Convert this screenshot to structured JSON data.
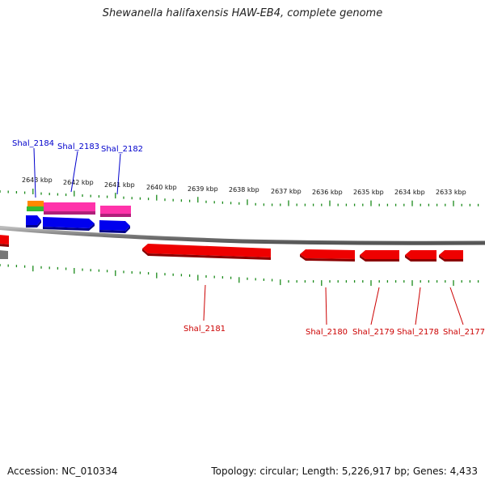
{
  "title": "Shewanella halifaxensis HAW-EB4, complete genome",
  "footer": {
    "accession": "Accession: NC_010334",
    "summary": "Topology: circular; Length: 5,226,917 bp; Genes: 4,433"
  },
  "colors": {
    "backbone": "#8a8a8a",
    "tick": "#1a8a1a",
    "forward_gene": "#0000ee",
    "reverse_gene": "#ee0000",
    "forward_label": "#0000cc",
    "reverse_label": "#cc0000",
    "feature_pink": "#ff33aa",
    "feature_orange": "#ff8800",
    "feature_green": "#33bb33"
  },
  "scale_labels": [
    "2643 kbp",
    "2642 kbp",
    "2641 kbp",
    "2640 kbp",
    "2639 kbp",
    "2638 kbp",
    "2637 kbp",
    "2636 kbp",
    "2635 kbp",
    "2634 kbp",
    "2633 kbp"
  ],
  "genes_forward": [
    {
      "name": "Shal_2184"
    },
    {
      "name": "Shal_2183"
    },
    {
      "name": "Shal_2182"
    }
  ],
  "genes_reverse": [
    {
      "name": "Shal_2181"
    },
    {
      "name": "Shal_2180"
    },
    {
      "name": "Shal_2179"
    },
    {
      "name": "Shal_2178"
    },
    {
      "name": "Shal_2177"
    }
  ]
}
